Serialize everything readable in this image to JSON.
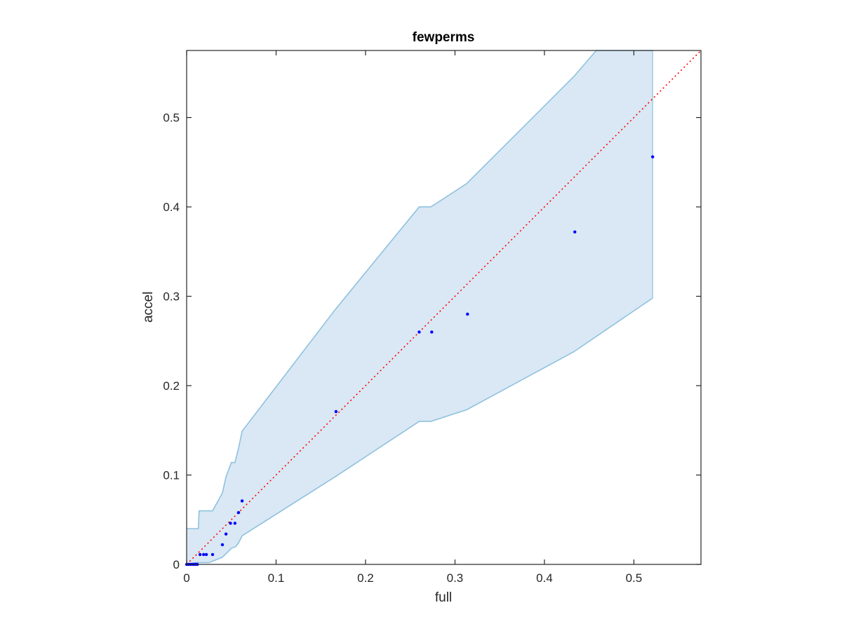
{
  "chart_data": {
    "type": "scatter",
    "title": "fewperms",
    "xlabel": "full",
    "ylabel": "accel",
    "xlim": [
      0,
      0.575
    ],
    "ylim": [
      0,
      0.575
    ],
    "xticks": [
      0,
      0.1,
      0.2,
      0.3,
      0.4,
      0.5
    ],
    "yticks": [
      0,
      0.1,
      0.2,
      0.3,
      0.4,
      0.5
    ],
    "xtick_labels": [
      "0",
      "0.1",
      "0.2",
      "0.3",
      "0.4",
      "0.5"
    ],
    "ytick_labels": [
      "0",
      "0.1",
      "0.2",
      "0.3",
      "0.4",
      "0.5"
    ],
    "grid": false,
    "box": true,
    "reference_line": {
      "style": "dotted",
      "color": "#ff0000",
      "from": [
        0,
        0
      ],
      "to": [
        0.575,
        0.575
      ]
    },
    "band": {
      "fill": "#d9e8f4",
      "stroke": "#8fc1df",
      "upper": [
        [
          0,
          0.04
        ],
        [
          0.013,
          0.04
        ],
        [
          0.014,
          0.06
        ],
        [
          0.029,
          0.06
        ],
        [
          0.04,
          0.08
        ],
        [
          0.044,
          0.098
        ],
        [
          0.05,
          0.114
        ],
        [
          0.054,
          0.114
        ],
        [
          0.058,
          0.13
        ],
        [
          0.062,
          0.149
        ],
        [
          0.166,
          0.285
        ],
        [
          0.26,
          0.4
        ],
        [
          0.273,
          0.4
        ],
        [
          0.313,
          0.426
        ],
        [
          0.433,
          0.546
        ],
        [
          0.458,
          0.575
        ],
        [
          0.521,
          0.575
        ]
      ],
      "lower": [
        [
          0,
          0.0
        ],
        [
          0.01,
          0.002
        ],
        [
          0.025,
          0.002
        ],
        [
          0.04,
          0.008
        ],
        [
          0.05,
          0.018
        ],
        [
          0.055,
          0.02
        ],
        [
          0.058,
          0.024
        ],
        [
          0.062,
          0.032
        ],
        [
          0.166,
          0.098
        ],
        [
          0.26,
          0.16
        ],
        [
          0.273,
          0.16
        ],
        [
          0.313,
          0.173
        ],
        [
          0.433,
          0.238
        ],
        [
          0.521,
          0.298
        ]
      ]
    },
    "series": [
      {
        "marker": "dot",
        "color": "#0000ff",
        "points": [
          [
            0.0,
            0.0
          ],
          [
            0.002,
            0.0
          ],
          [
            0.004,
            0.0
          ],
          [
            0.006,
            0.0
          ],
          [
            0.008,
            0.0
          ],
          [
            0.01,
            0.0
          ],
          [
            0.012,
            0.0
          ],
          [
            0.015,
            0.011
          ],
          [
            0.019,
            0.011
          ],
          [
            0.022,
            0.011
          ],
          [
            0.029,
            0.011
          ],
          [
            0.04,
            0.022
          ],
          [
            0.044,
            0.034
          ],
          [
            0.049,
            0.046
          ],
          [
            0.054,
            0.046
          ],
          [
            0.058,
            0.058
          ],
          [
            0.062,
            0.071
          ],
          [
            0.167,
            0.171
          ],
          [
            0.26,
            0.26
          ],
          [
            0.274,
            0.26
          ],
          [
            0.314,
            0.28
          ],
          [
            0.434,
            0.372
          ],
          [
            0.521,
            0.456
          ]
        ]
      }
    ]
  }
}
